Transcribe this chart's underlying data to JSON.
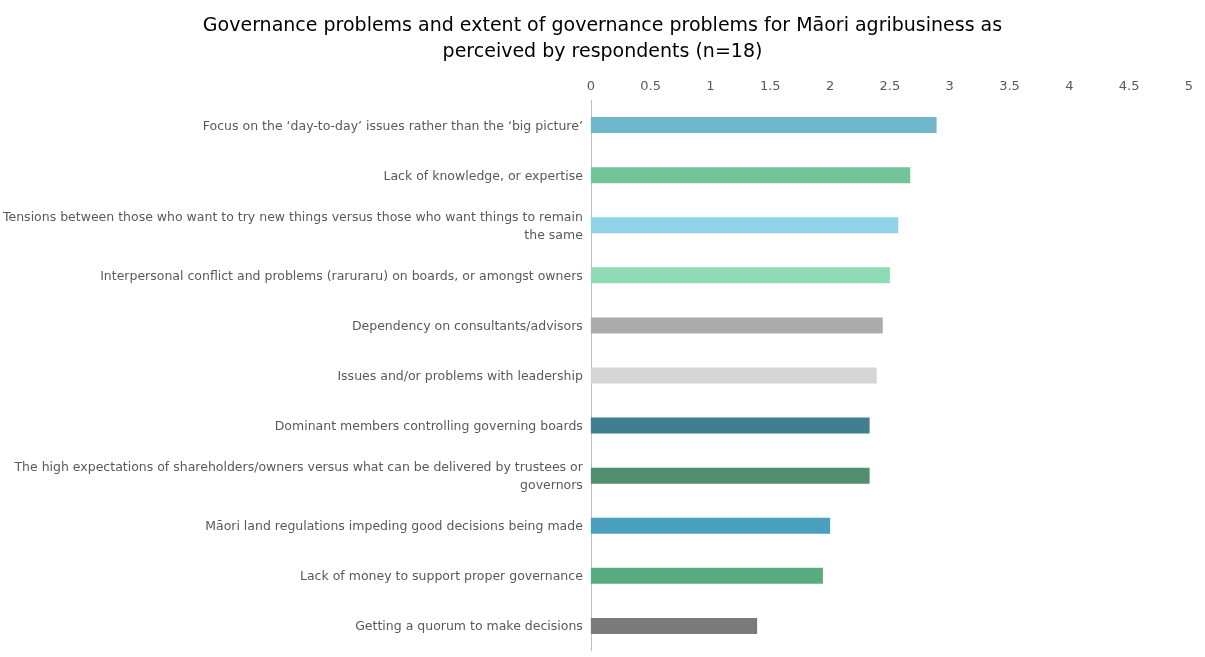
{
  "chart_data": {
    "type": "bar",
    "orientation": "horizontal",
    "title": "Governance problems and extent of governance problems for Māori agribusiness as\nperceived by respondents (n=18)",
    "categories": [
      "Focus on the ‘day-to-day’ issues rather than the ‘big picture’",
      "Lack of knowledge, or expertise",
      "Tensions between those who want to try new things versus those who want things to remain the same",
      "Interpersonal conflict and problems (raruraru) on boards, or amongst owners",
      "Dependency on consultants/advisors",
      "Issues and/or problems with leadership",
      "Dominant members controlling governing boards",
      "The high expectations of shareholders/owners versus what can be delivered by trustees or governors",
      "Māori land regulations impeding good decisions being made",
      "Lack of money to support proper governance",
      "Getting a quorum to make decisions"
    ],
    "values": [
      2.89,
      2.67,
      2.57,
      2.5,
      2.44,
      2.39,
      2.33,
      2.33,
      2,
      1.94,
      1.39
    ],
    "colors": [
      "#6fb8cc",
      "#74c49a",
      "#8fd3e8",
      "#8fdcb4",
      "#ababab",
      "#d6d6d6",
      "#3f7f90",
      "#4f8f6e",
      "#4aa0bc",
      "#5aab82",
      "#7a7a7a"
    ],
    "xlim": [
      0,
      5
    ],
    "xticks": [
      0,
      0.5,
      1,
      1.5,
      2,
      2.5,
      3,
      3.5,
      4,
      4.5,
      5
    ]
  }
}
